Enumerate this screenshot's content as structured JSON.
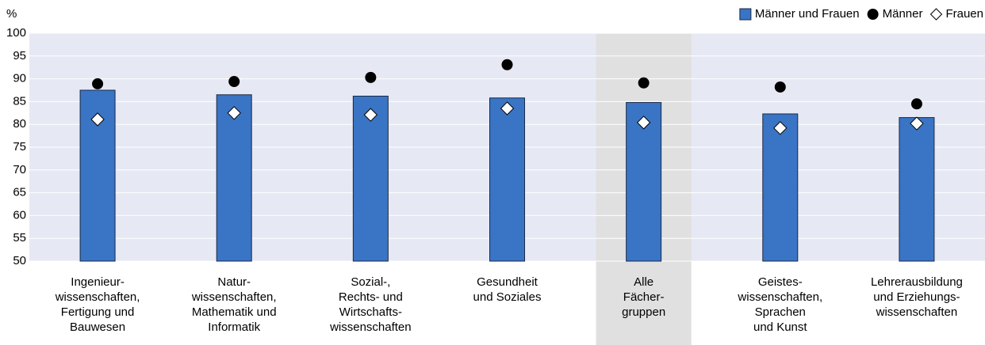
{
  "chart_data": {
    "type": "bar",
    "y_label": "%",
    "categories": [
      [
        "Ingenieur-",
        "wissenschaften,",
        "Fertigung und",
        "Bauwesen"
      ],
      [
        "Natur-",
        "wissenschaften,",
        "Mathematik und",
        "Informatik"
      ],
      [
        "Sozial-,",
        "Rechts- und",
        "Wirtschafts-",
        "wissenschaften"
      ],
      [
        "Gesundheit",
        "und Soziales"
      ],
      [
        "Alle",
        "Fächer-",
        "gruppen"
      ],
      [
        "Geistes-",
        "wissenschaften,",
        "Sprachen",
        "und Kunst"
      ],
      [
        "Lehrerausbildung",
        "und Erziehungs-",
        "wissenschaften"
      ]
    ],
    "highlight_category": 4,
    "highlight_color": "#e0e0e0",
    "plot_background": "#e6e8f4",
    "series": [
      {
        "name": "Männer und Frauen",
        "marker": "bar",
        "color": "#3a74c4",
        "values": [
          87.5,
          86.5,
          86.2,
          85.8,
          84.8,
          82.3,
          81.5
        ]
      },
      {
        "name": "Männer",
        "marker": "circle",
        "color": "#000000",
        "values": [
          88.9,
          89.4,
          90.3,
          93.1,
          89.1,
          88.2,
          84.5
        ]
      },
      {
        "name": "Frauen",
        "marker": "diamond",
        "color": "#ffffff",
        "values": [
          81.1,
          82.5,
          82.1,
          83.5,
          80.4,
          79.2,
          80.2
        ]
      }
    ],
    "ylim": [
      50,
      100
    ],
    "yticks": [
      50,
      55,
      60,
      65,
      70,
      75,
      80,
      85,
      90,
      95,
      100
    ],
    "grid": true,
    "legend": "top-right"
  }
}
